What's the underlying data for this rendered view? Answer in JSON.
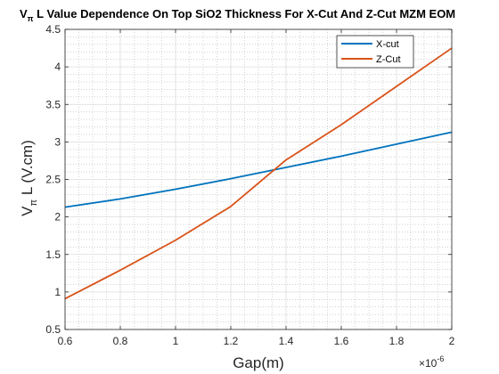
{
  "chart_data": {
    "type": "line",
    "title_lead": "V",
    "title_sub": "π",
    "title_main": " L Value Dependence On Top SiO2 Thickness For X-Cut And Z-Cut MZM EOM",
    "xlabel": "Gap(m)",
    "ylabel_lead": "V",
    "ylabel_sub": "π",
    "ylabel_main": " L (V.cm)",
    "x_multiplier": "×10",
    "x_multiplier_exp": "-6",
    "xlim": [
      0.6,
      2.0
    ],
    "ylim": [
      0.5,
      4.5
    ],
    "xticks": [
      0.6,
      0.8,
      1.0,
      1.2,
      1.4,
      1.6,
      1.8,
      2.0
    ],
    "xtick_labels": [
      "0.6",
      "0.8",
      "1",
      "1.2",
      "1.4",
      "1.6",
      "1.8",
      "2"
    ],
    "yticks": [
      0.5,
      1.0,
      1.5,
      2.0,
      2.5,
      3.0,
      3.5,
      4.0,
      4.5
    ],
    "ytick_labels": [
      "0.5",
      "1",
      "1.5",
      "2",
      "2.5",
      "3",
      "3.5",
      "4",
      "4.5"
    ],
    "grid": true,
    "minor_grid": true,
    "legend_position": "top-right",
    "series": [
      {
        "name": "X-cut",
        "color": "#0072BD",
        "x": [
          0.6,
          0.8,
          1.0,
          1.2,
          1.4,
          1.6,
          1.8,
          2.0
        ],
        "y": [
          2.13,
          2.24,
          2.37,
          2.51,
          2.66,
          2.81,
          2.97,
          3.13
        ]
      },
      {
        "name": "Z-Cut",
        "color": "#D95319",
        "x": [
          0.6,
          0.8,
          1.0,
          1.2,
          1.4,
          1.6,
          1.8,
          2.0
        ],
        "y": [
          0.91,
          1.29,
          1.69,
          2.14,
          2.76,
          3.23,
          3.74,
          4.25
        ]
      }
    ]
  }
}
